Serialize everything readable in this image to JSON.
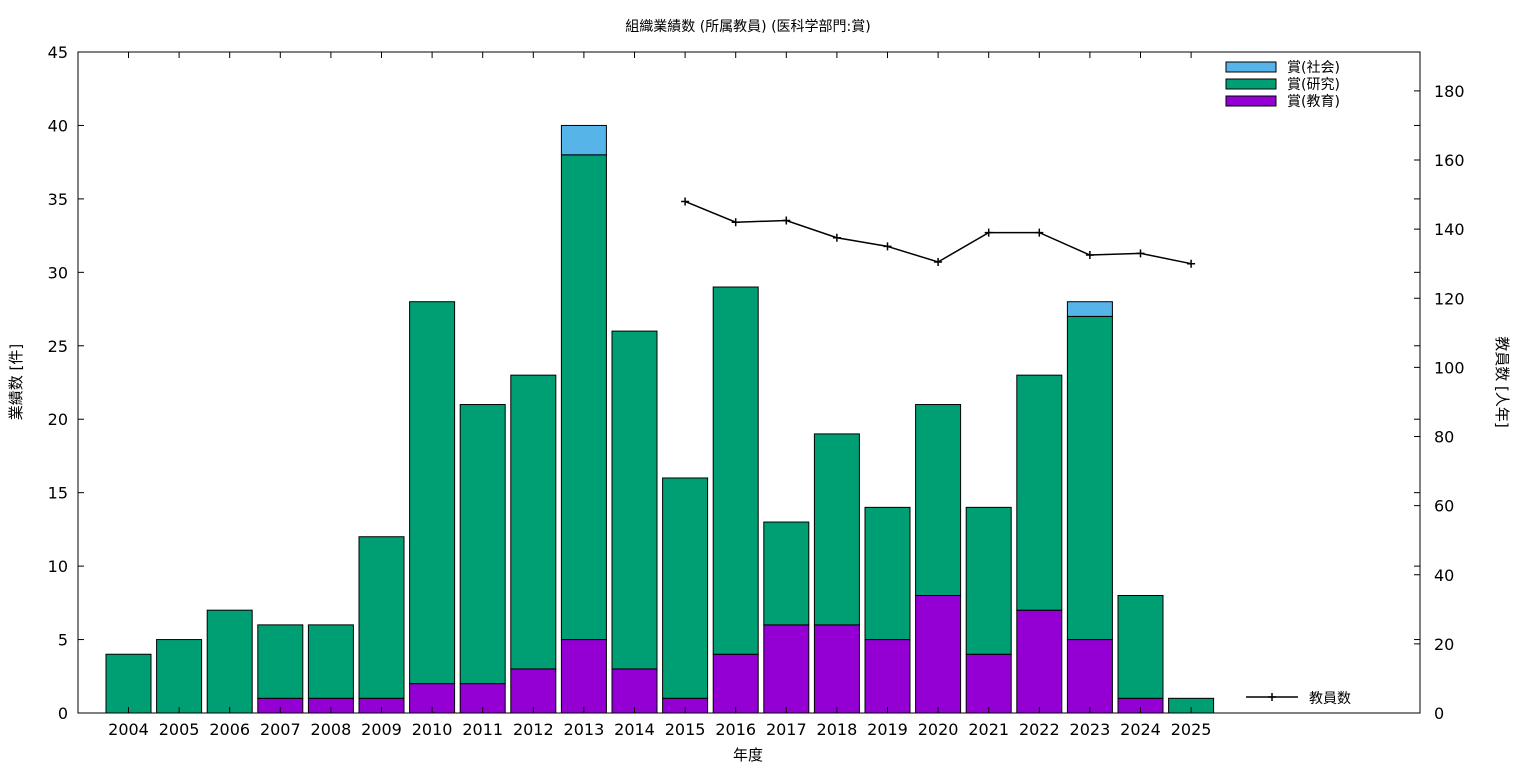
{
  "chart_data": {
    "type": "bar",
    "title": "組織業績数 (所属教員) (医科学部門:賞)",
    "xlabel": "年度",
    "ylabel": "業績数 [件]",
    "y2label": "教員数 [人年]",
    "ylim": [
      0,
      45
    ],
    "y2lim": [
      0,
      191.25
    ],
    "yticks": [
      0,
      5,
      10,
      15,
      20,
      25,
      30,
      35,
      40,
      45
    ],
    "y2ticks": [
      0,
      20,
      40,
      60,
      80,
      100,
      120,
      140,
      160,
      180
    ],
    "stacked": true,
    "categories": [
      "2004",
      "2005",
      "2006",
      "2007",
      "2008",
      "2009",
      "2010",
      "2011",
      "2012",
      "2013",
      "2014",
      "2015",
      "2016",
      "2017",
      "2018",
      "2019",
      "2020",
      "2021",
      "2022",
      "2023",
      "2024",
      "2025"
    ],
    "series": [
      {
        "name": "賞(教育)",
        "color": "#9400d3",
        "values": [
          0,
          0,
          0,
          1,
          1,
          1,
          2,
          2,
          3,
          5,
          3,
          1,
          4,
          6,
          6,
          5,
          8,
          4,
          7,
          5,
          1,
          0
        ]
      },
      {
        "name": "賞(研究)",
        "color": "#009e73",
        "values": [
          4,
          5,
          7,
          5,
          5,
          11,
          26,
          19,
          20,
          33,
          23,
          15,
          25,
          7,
          13,
          9,
          13,
          10,
          16,
          22,
          7,
          1
        ]
      },
      {
        "name": "賞(社会)",
        "color": "#56b4e9",
        "values": [
          0,
          0,
          0,
          0,
          0,
          0,
          0,
          0,
          0,
          2,
          0,
          0,
          0,
          0,
          0,
          0,
          0,
          0,
          0,
          1,
          0,
          0
        ]
      }
    ],
    "line_series": {
      "name": "教員数",
      "axis": "y2",
      "color": "#000000",
      "x": [
        "2015",
        "2016",
        "2017",
        "2018",
        "2019",
        "2020",
        "2021",
        "2022",
        "2023",
        "2024",
        "2025"
      ],
      "values": [
        148,
        142,
        142.5,
        137.5,
        135,
        130.5,
        139,
        139,
        132.5,
        133,
        130
      ]
    },
    "legend_position": "top-right",
    "grid": false
  }
}
